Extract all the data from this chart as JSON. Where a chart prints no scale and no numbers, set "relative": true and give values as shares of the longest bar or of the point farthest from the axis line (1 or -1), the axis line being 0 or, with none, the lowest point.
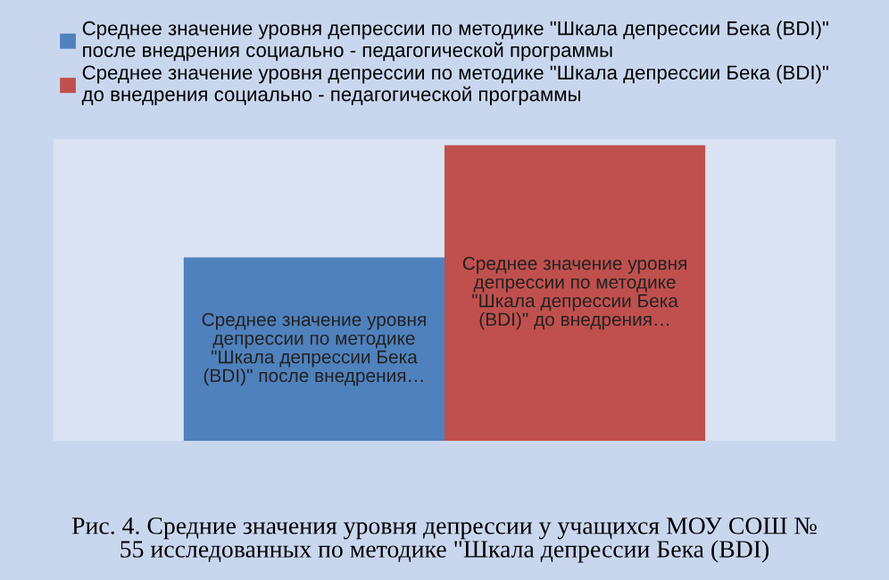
{
  "chart_data": {
    "type": "bar",
    "relative": true,
    "categories": [
      null
    ],
    "series": [
      {
        "name": "Среднее значение уровня депрессии по методике \"Шкала депрессии Бека (BDI)\" после внедрения социально - педагогической программы",
        "color": "#4f81bd",
        "values": [
          0.62
        ]
      },
      {
        "name": "Среднее значение уровня депрессии по методике \"Шкала депрессии Бека (BDI)\" до внедрения социально - педагогической программы",
        "color": "#c0504d",
        "values": [
          1
        ]
      }
    ],
    "annotations": [
      "Среднее значение уровня депрессии по методике \"Шкала депрессии Бека (BDI)\" после внедрения…",
      "Среднее значение уровня депрессии по методике \"Шкала депрессии Бека (BDI)\" до внедрения…",
      "Рис. 4. Средние значения уровня депрессии у учащихся МОУ СОШ № 55 исследованных по методике \"Шкала депрессии Бека (BDI)"
    ],
    "legend": "top",
    "grid": false
  }
}
